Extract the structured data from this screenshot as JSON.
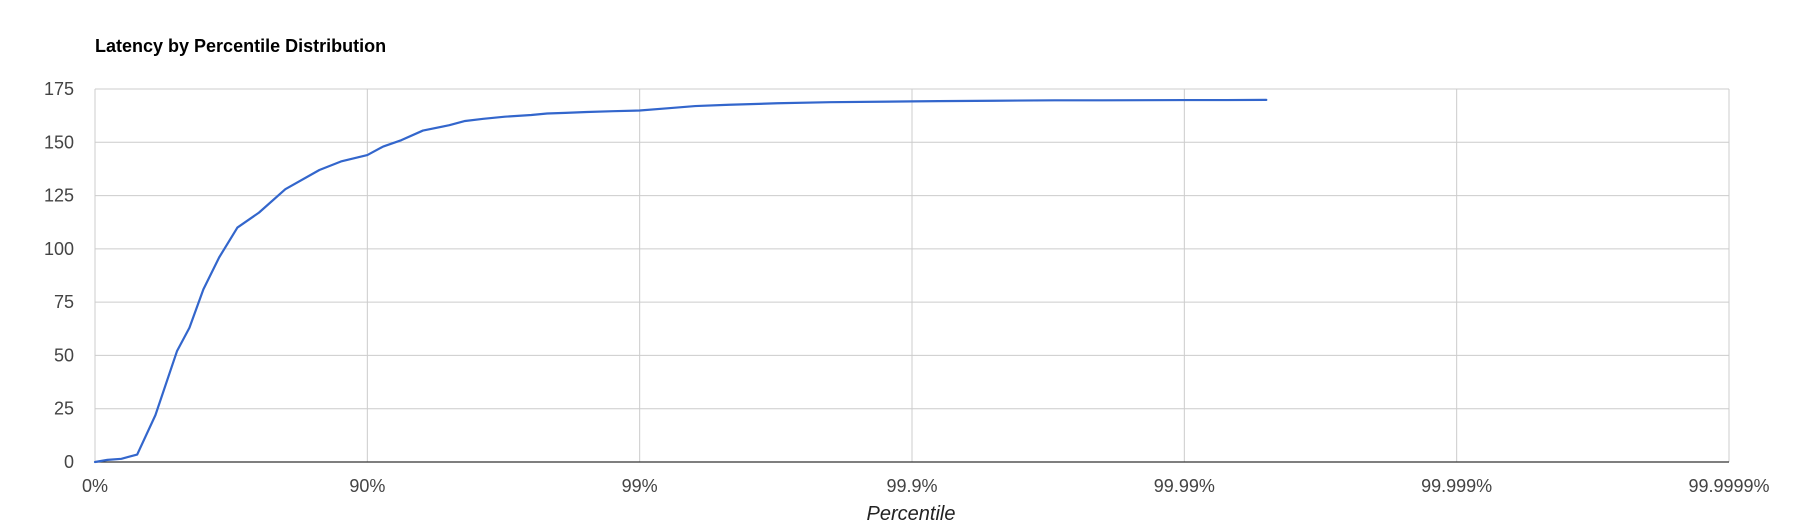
{
  "chart_data": {
    "type": "line",
    "title": "Latency by Percentile Distribution",
    "xlabel": "Percentile",
    "ylabel": "",
    "x_scale": "log of 1/(1 - percentile)",
    "x_ticks": [
      "0%",
      "90%",
      "99%",
      "99.9%",
      "99.99%",
      "99.999%",
      "99.9999%"
    ],
    "y_ticks": [
      "0",
      "25",
      "50",
      "75",
      "100",
      "125",
      "150",
      "175"
    ],
    "ylim": [
      0,
      175
    ],
    "grid": true,
    "legend": "none",
    "colors": {
      "series": "#3366cc",
      "grid": "#cccccc",
      "baseline": "#333333"
    },
    "series": [
      {
        "x": [
          0,
          10,
          20,
          30,
          40,
          50,
          55,
          60,
          65,
          70,
          75,
          80,
          85,
          87.5,
          90,
          91.25,
          92.5,
          93.75,
          95,
          95.625,
          96.25,
          96.875,
          97.5,
          97.8125,
          98.125,
          98.4375,
          98.75,
          99,
          99.21875,
          99.375,
          99.53125,
          99.6875,
          99.8,
          99.9,
          99.92,
          99.95,
          99.97,
          99.98,
          99.99,
          99.993,
          99.995
        ],
        "values": [
          0,
          1,
          1.5,
          3.5,
          22,
          52,
          63,
          81,
          96,
          110,
          117,
          128,
          137,
          141,
          144,
          148,
          151,
          155.5,
          158,
          160,
          161,
          162,
          162.8,
          163.5,
          163.8,
          164.2,
          164.6,
          164.9,
          166,
          167,
          167.6,
          168.3,
          168.8,
          169.2,
          169.3,
          169.5,
          169.7,
          169.7,
          169.8,
          169.8,
          169.9
        ]
      }
    ]
  }
}
